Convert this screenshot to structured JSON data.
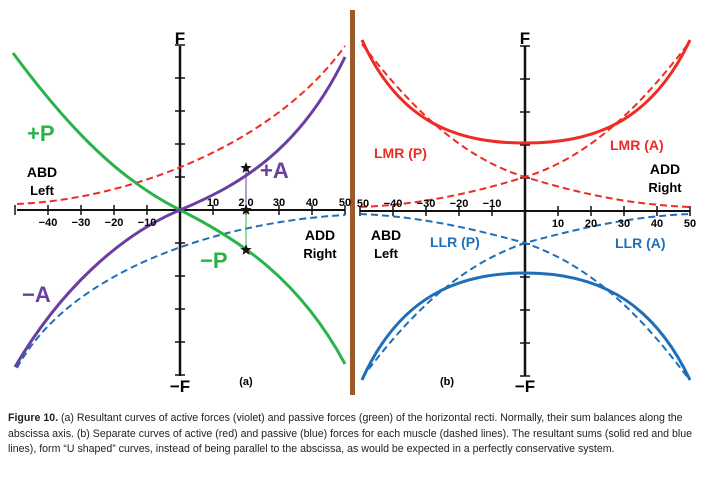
{
  "figure": {
    "panel_a": {
      "label": "(a)",
      "y_top": "F",
      "y_bottom": "−F",
      "x_ticks_neg": [
        "−40",
        "−30",
        "−20",
        "−10"
      ],
      "x_ticks_pos": [
        "10",
        "2 0",
        "30",
        "40",
        "50"
      ],
      "labels": {
        "plus_p": "+P",
        "minus_p": "−P",
        "plus_a": "+A",
        "minus_a": "−A",
        "abd": "ABD",
        "left": "Left",
        "add": "ADD",
        "right": "Right"
      }
    },
    "panel_b": {
      "label": "(b)",
      "y_top": "F",
      "y_bottom": "−F",
      "x_ticks_neg": [
        "50",
        "−40",
        "−30",
        "−20",
        "−10"
      ],
      "x_ticks_pos": [
        "10",
        "20",
        "30",
        "40",
        "50"
      ],
      "labels": {
        "lmr_p": "LMR (P)",
        "lmr_a": "LMR (A)",
        "llr_p": "LLR (P)",
        "llr_a": "LLR (A)",
        "abd": "ABD",
        "left": "Left",
        "add": "ADD",
        "right": "Right"
      }
    },
    "colors": {
      "active_violet": "#6a3fa0",
      "passive_green": "#2bb34a",
      "red": "#ee2b24",
      "blue": "#1f6fb8",
      "divider_brown": "#9a5a2b"
    }
  },
  "caption": {
    "title": "Figure 10.",
    "text": " (a) Resultant curves of active forces (violet) and passive forces (green) of the horizontal recti. Normally, their sum balances along the abscissa axis. (b) Separate curves of active (red) and passive (blue) forces for each muscle (dashed lines). The resultant sums (solid red and blue lines), form “U shaped” curves, instead of being parallel to the abscissa, as would be expected in a perfectly conservative system."
  }
}
